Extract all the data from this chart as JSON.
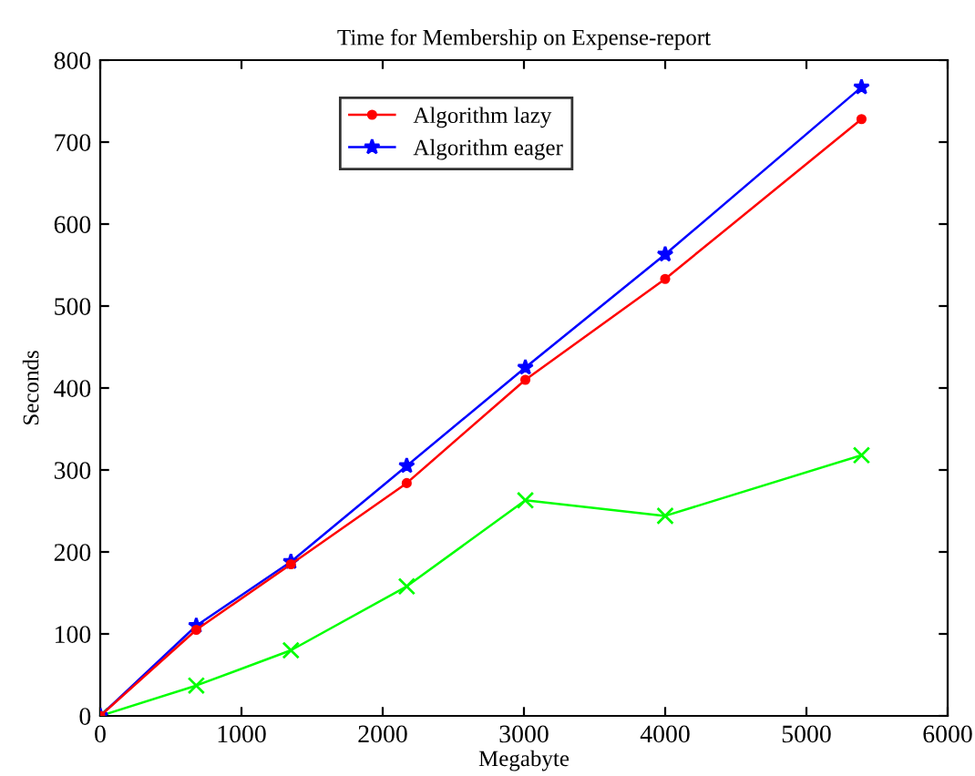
{
  "chart_data": {
    "type": "line",
    "title": "Time for Membership on Expense-report",
    "xlabel": "Megabyte",
    "ylabel": "Seconds",
    "x": [
      0,
      680,
      1350,
      2170,
      3010,
      4000,
      5390
    ],
    "series": [
      {
        "name": "Algorithm lazy",
        "color": "#ff0000",
        "marker": "circle",
        "values": [
          0,
          105,
          185,
          284,
          410,
          533,
          728
        ]
      },
      {
        "name": "Algorithm eager",
        "color": "#0000ff",
        "marker": "star",
        "values": [
          0,
          110,
          188,
          305,
          425,
          563,
          767
        ]
      },
      {
        "color": "#00ff00",
        "marker": "cross",
        "values": [
          0,
          37,
          80,
          158,
          263,
          244,
          318
        ]
      }
    ],
    "xlim": [
      0,
      6000
    ],
    "xticks": [
      0,
      1000,
      2000,
      3000,
      4000,
      5000,
      6000
    ],
    "ylim": [
      0,
      800
    ],
    "yticks": [
      0,
      100,
      200,
      300,
      400,
      500,
      600,
      700,
      800
    ],
    "grid": false,
    "legend": "top",
    "line_style": "solid"
  }
}
